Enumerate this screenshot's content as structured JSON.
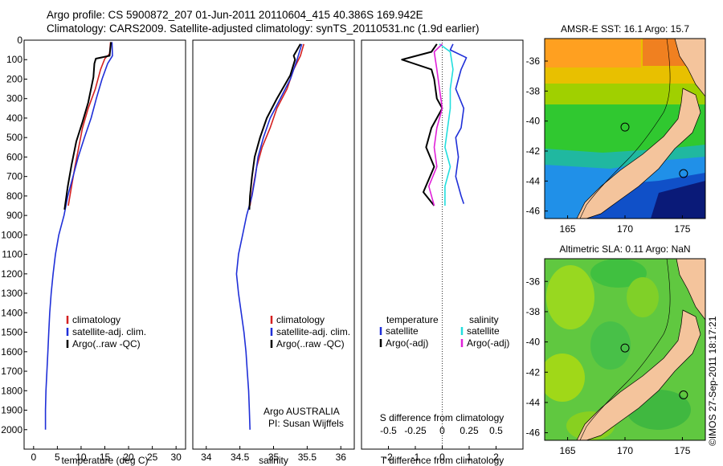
{
  "title": {
    "line1": "Argo profile: CS 5900872_207 01-Jun-2011 20110604_415 40.386S 169.942E",
    "line2": "Climatology: CARS2009. Satellite-adjusted climatology: synTS_20110531.nc (1.9d earlier)"
  },
  "colors": {
    "climatology": "#d42020",
    "satellite": "#1f2fd8",
    "argo": "#000000",
    "sat_salinity": "#22dede",
    "argo_salinity": "#e020d8",
    "land": "#f4c49c"
  },
  "chart_data": [
    {
      "type": "line",
      "id": "temperature",
      "xlabel": "temperature (deg C)",
      "xlim": [
        -2,
        32
      ],
      "xticks": [
        0,
        5,
        10,
        15,
        20,
        25,
        30
      ],
      "ylim": [
        0,
        2100
      ],
      "yticks": [
        0,
        100,
        200,
        300,
        400,
        500,
        600,
        700,
        800,
        900,
        1000,
        1100,
        1200,
        1300,
        1400,
        1500,
        1600,
        1700,
        1800,
        1900,
        2000
      ],
      "legend": [
        "climatology",
        "satellite-adj. clim.",
        "Argo(..raw -QC)"
      ],
      "series": [
        {
          "name": "climatology",
          "color": "#d42020",
          "points": [
            [
              16.2,
              10
            ],
            [
              16.0,
              70
            ],
            [
              15.0,
              95
            ],
            [
              14.1,
              150
            ],
            [
              13.0,
              250
            ],
            [
              11.5,
              350
            ],
            [
              10.3,
              450
            ],
            [
              9.5,
              550
            ],
            [
              8.7,
              650
            ],
            [
              8.0,
              750
            ],
            [
              7.3,
              850
            ]
          ]
        },
        {
          "name": "satellite-adj. clim.",
          "color": "#1f2fd8",
          "points": [
            [
              16.5,
              10
            ],
            [
              16.6,
              80
            ],
            [
              15.6,
              120
            ],
            [
              14.4,
              200
            ],
            [
              13.2,
              300
            ],
            [
              12.1,
              400
            ],
            [
              10.7,
              500
            ],
            [
              9.4,
              600
            ],
            [
              8.3,
              700
            ],
            [
              7.2,
              800
            ],
            [
              6.4,
              900
            ],
            [
              5.3,
              1000
            ],
            [
              4.6,
              1100
            ],
            [
              4.1,
              1200
            ],
            [
              3.7,
              1300
            ],
            [
              3.4,
              1400
            ],
            [
              3.2,
              1500
            ],
            [
              3.0,
              1600
            ],
            [
              2.8,
              1700
            ],
            [
              2.6,
              1800
            ],
            [
              2.5,
              1900
            ],
            [
              2.5,
              2000
            ]
          ]
        },
        {
          "name": "Argo(..raw -QC)",
          "color": "#000000",
          "points": [
            [
              16.3,
              10
            ],
            [
              16.0,
              80
            ],
            [
              13.1,
              95
            ],
            [
              12.8,
              120
            ],
            [
              12.6,
              190
            ],
            [
              11.5,
              320
            ],
            [
              10.3,
              420
            ],
            [
              9.0,
              520
            ],
            [
              8.0,
              640
            ],
            [
              7.2,
              750
            ],
            [
              6.5,
              870
            ]
          ]
        }
      ]
    },
    {
      "type": "line",
      "id": "salinity",
      "xlabel": "salinity",
      "xlim": [
        33.8,
        36.2
      ],
      "xticks": [
        34,
        34.5,
        35,
        35.5,
        36
      ],
      "ylim": [
        0,
        2100
      ],
      "legend": [
        "climatology",
        "satellite-adj. clim.",
        "Argo(..raw -QC)"
      ],
      "annotation": [
        "Argo AUSTRALIA",
        "PI: Susan Wijffels"
      ],
      "series": [
        {
          "name": "climatology",
          "color": "#d42020",
          "points": [
            [
              35.45,
              20
            ],
            [
              35.4,
              80
            ],
            [
              35.3,
              150
            ],
            [
              35.2,
              250
            ],
            [
              35.05,
              350
            ],
            [
              34.95,
              450
            ],
            [
              34.83,
              550
            ],
            [
              34.75,
              650
            ],
            [
              34.7,
              750
            ],
            [
              34.65,
              850
            ]
          ]
        },
        {
          "name": "satellite-adj. clim.",
          "color": "#1f2fd8",
          "points": [
            [
              35.42,
              20
            ],
            [
              35.35,
              100
            ],
            [
              35.25,
              200
            ],
            [
              35.1,
              300
            ],
            [
              34.95,
              400
            ],
            [
              34.85,
              500
            ],
            [
              34.77,
              600
            ],
            [
              34.73,
              700
            ],
            [
              34.68,
              800
            ],
            [
              34.6,
              900
            ],
            [
              34.54,
              1000
            ],
            [
              34.48,
              1100
            ],
            [
              34.45,
              1200
            ],
            [
              34.48,
              1300
            ],
            [
              34.52,
              1400
            ],
            [
              34.56,
              1500
            ],
            [
              34.59,
              1600
            ],
            [
              34.61,
              1700
            ],
            [
              34.63,
              1800
            ],
            [
              34.64,
              1900
            ],
            [
              34.65,
              2000
            ]
          ]
        },
        {
          "name": "Argo(..raw -QC)",
          "color": "#000000",
          "points": [
            [
              35.4,
              20
            ],
            [
              35.3,
              80
            ],
            [
              35.32,
              100
            ],
            [
              35.25,
              180
            ],
            [
              35.05,
              300
            ],
            [
              34.9,
              400
            ],
            [
              34.8,
              500
            ],
            [
              34.72,
              600
            ],
            [
              34.68,
              700
            ],
            [
              34.65,
              800
            ],
            [
              34.64,
              870
            ]
          ]
        }
      ]
    },
    {
      "type": "line",
      "id": "difference",
      "xlabel": "T difference from climatology",
      "xlabel_top": "S difference from climatology",
      "xlim": [
        -3,
        3
      ],
      "xticks": [
        -2,
        -1,
        0,
        1,
        2
      ],
      "xticks_S": [
        -0.5,
        -0.25,
        0,
        0.25,
        0.5
      ],
      "ylim": [
        0,
        2100
      ],
      "legend_headers": [
        "temperature",
        "salinity"
      ],
      "legend": [
        "satellite",
        "Argo(-adj)",
        "satellite",
        "Argo(-adj)"
      ],
      "series": [
        {
          "name": "satellite",
          "group": "temperature",
          "color": "#1f2fd8",
          "points": [
            [
              0.4,
              20
            ],
            [
              0.3,
              50
            ],
            [
              0.9,
              90
            ],
            [
              0.7,
              150
            ],
            [
              0.5,
              250
            ],
            [
              0.8,
              350
            ],
            [
              0.7,
              450
            ],
            [
              0.5,
              500
            ],
            [
              0.6,
              600
            ],
            [
              0.5,
              700
            ],
            [
              0.7,
              800
            ],
            [
              0.8,
              840
            ]
          ]
        },
        {
          "name": "Argo(-adj)",
          "group": "temperature",
          "color": "#000000",
          "points": [
            [
              -0.2,
              20
            ],
            [
              -0.4,
              60
            ],
            [
              -1.5,
              100
            ],
            [
              -0.4,
              150
            ],
            [
              -0.3,
              200
            ],
            [
              -0.2,
              300
            ],
            [
              0.0,
              350
            ],
            [
              -0.2,
              400
            ],
            [
              -0.4,
              450
            ],
            [
              -0.6,
              550
            ],
            [
              -0.3,
              650
            ],
            [
              -0.7,
              780
            ],
            [
              -0.3,
              850
            ]
          ]
        },
        {
          "name": "satellite",
          "group": "salinity",
          "color": "#22dede",
          "points": [
            [
              -0.1,
              20
            ],
            [
              0.3,
              60
            ],
            [
              0.4,
              150
            ],
            [
              0.3,
              250
            ],
            [
              0.3,
              350
            ],
            [
              0.2,
              450
            ],
            [
              0.1,
              550
            ],
            [
              0.3,
              650
            ],
            [
              0.1,
              750
            ],
            [
              0.1,
              850
            ]
          ]
        },
        {
          "name": "Argo(-adj)",
          "group": "salinity",
          "color": "#e020d8",
          "points": [
            [
              0.0,
              20
            ],
            [
              -0.3,
              60
            ],
            [
              -0.2,
              150
            ],
            [
              -0.1,
              250
            ],
            [
              0.0,
              350
            ],
            [
              -0.2,
              450
            ],
            [
              -0.3,
              550
            ],
            [
              -0.2,
              650
            ],
            [
              -0.5,
              750
            ],
            [
              -0.3,
              850
            ]
          ]
        }
      ]
    },
    {
      "type": "heatmap",
      "id": "sst-map",
      "title": "AMSR-E SST: 16.1  Argo: 15.7",
      "xlim": [
        163,
        177
      ],
      "ylim": [
        -46.5,
        -34.5
      ],
      "xticks": [
        165,
        170,
        175
      ],
      "yticks": [
        -36,
        -38,
        -40,
        -42,
        -44,
        -46
      ],
      "markers": [
        [
          170.0,
          -40.4
        ],
        [
          175.1,
          -43.5
        ]
      ]
    },
    {
      "type": "heatmap",
      "id": "sla-map",
      "title": "Altimetric SLA: 0.11  Argo: NaN",
      "xlim": [
        163,
        177
      ],
      "ylim": [
        -46.5,
        -34.5
      ],
      "xticks": [
        165,
        170,
        175
      ],
      "yticks": [
        -36,
        -38,
        -40,
        -42,
        -44,
        -46
      ],
      "markers": [
        [
          170.0,
          -40.4
        ],
        [
          175.1,
          -43.5
        ]
      ]
    }
  ],
  "watermark": "©IMOS 27-Sep-2011 18:17:21"
}
